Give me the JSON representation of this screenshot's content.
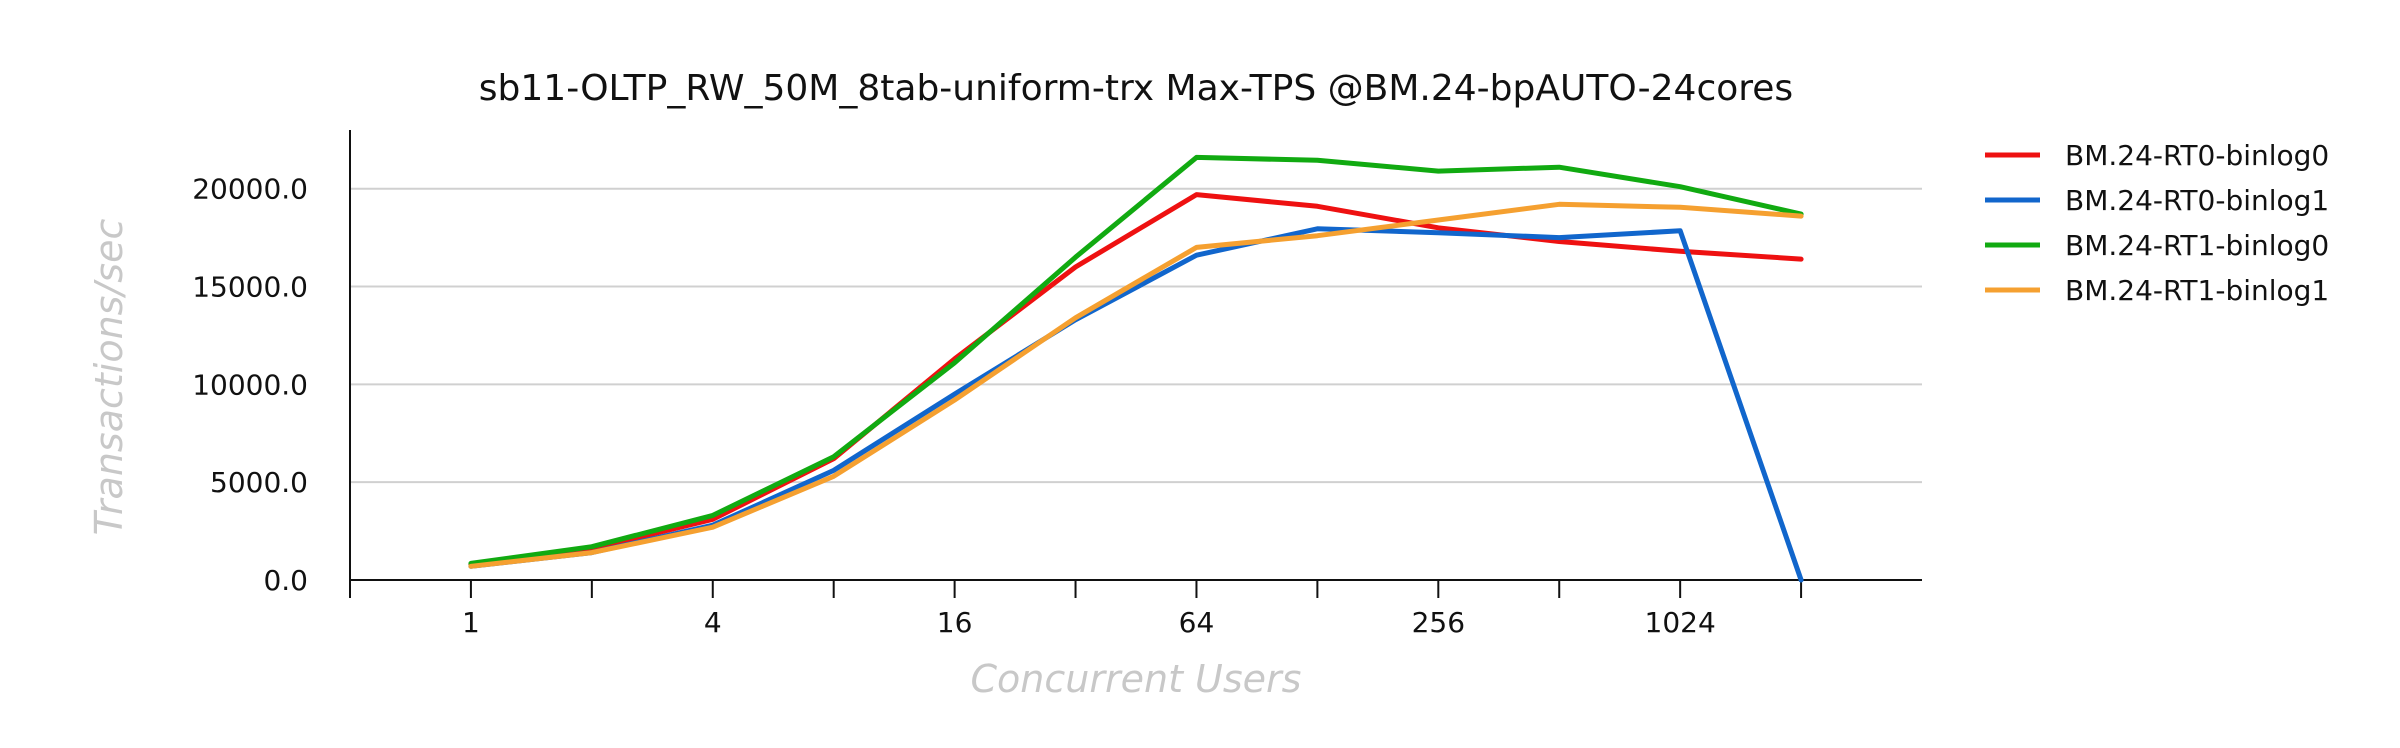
{
  "chart_data": {
    "type": "line",
    "title": "sb11-OLTP_RW_50M_8tab-uniform-trx Max-TPS @BM.24-bpAUTO-24cores",
    "xlabel": "Concurrent Users",
    "ylabel": "Transactions/sec",
    "x_scale": "log2",
    "x": [
      1,
      2,
      4,
      8,
      16,
      32,
      64,
      128,
      256,
      512,
      1024,
      2048
    ],
    "x_tick_labels": [
      "1",
      "4",
      "16",
      "64",
      "256",
      "1024"
    ],
    "x_tick_label_values": [
      1,
      4,
      16,
      64,
      256,
      1024
    ],
    "xlim": [
      0.5,
      4096
    ],
    "ylim": [
      0,
      23000
    ],
    "y_ticks": [
      0,
      5000,
      10000,
      15000,
      20000
    ],
    "y_tick_labels": [
      "0.0",
      "5000.0",
      "10000.0",
      "15000.0",
      "20000.0"
    ],
    "grid": "horizontal",
    "legend_position": "right",
    "series": [
      {
        "name": "BM.24-RT0-binlog0",
        "color": "#ee1111",
        "values": [
          800,
          1600,
          3100,
          6200,
          11300,
          16000,
          19700,
          19100,
          18000,
          17300,
          16800,
          16400
        ]
      },
      {
        "name": "BM.24-RT0-binlog1",
        "color": "#1166cc",
        "values": [
          700,
          1400,
          2800,
          5600,
          9500,
          13300,
          16600,
          17950,
          17750,
          17500,
          17850,
          0
        ]
      },
      {
        "name": "BM.24-RT1-binlog0",
        "color": "#11aa11",
        "values": [
          850,
          1700,
          3300,
          6300,
          11100,
          16500,
          21600,
          21450,
          20900,
          21100,
          20100,
          18700
        ]
      },
      {
        "name": "BM.24-RT1-binlog1",
        "color": "#f5a030",
        "values": [
          700,
          1400,
          2700,
          5300,
          9200,
          13400,
          17000,
          17600,
          18400,
          19200,
          19050,
          18600
        ]
      }
    ]
  }
}
